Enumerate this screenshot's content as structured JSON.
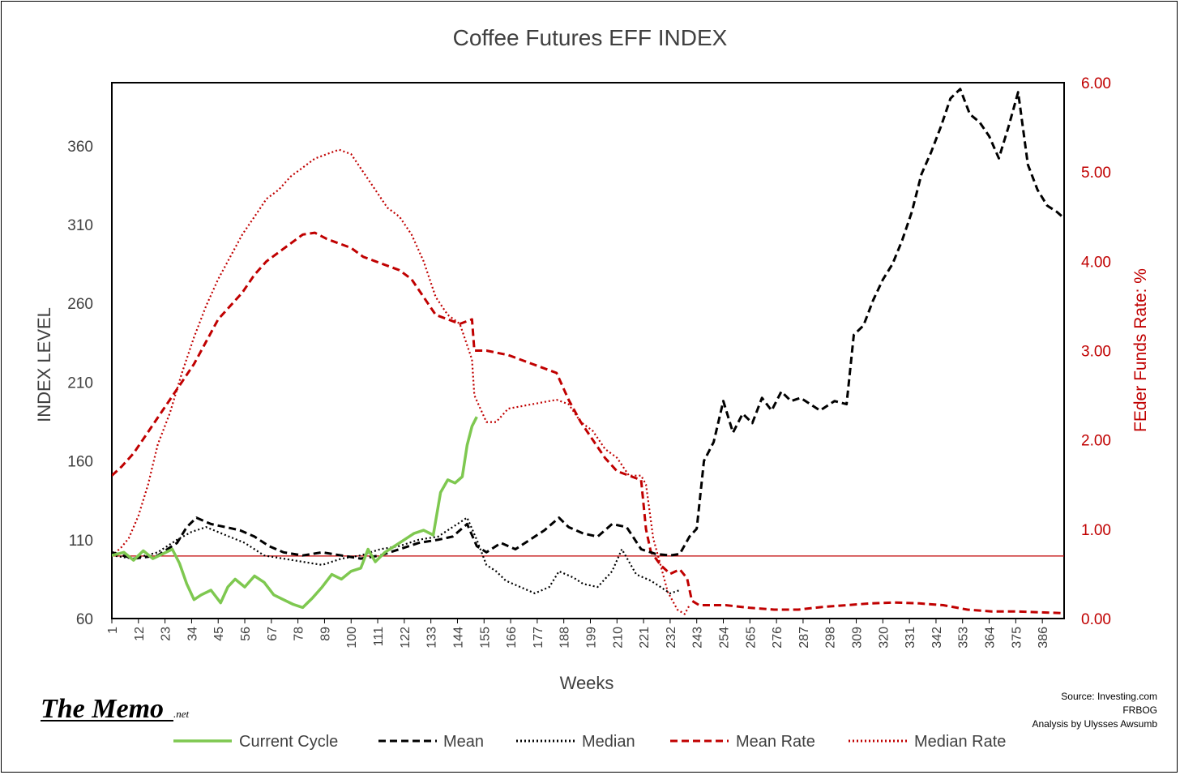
{
  "chart_data": {
    "type": "line",
    "title": "Coffee Futures EFF INDEX",
    "xlabel": "Weeks",
    "ylabel": "INDEX LEVEL",
    "y2label": "FEder Funds Rate: %",
    "xlim": [
      1,
      395
    ],
    "ylim": [
      60,
      400
    ],
    "y2lim": [
      0,
      6
    ],
    "x_ticks": [
      1,
      12,
      23,
      34,
      45,
      56,
      67,
      78,
      89,
      100,
      111,
      122,
      133,
      144,
      155,
      166,
      177,
      188,
      199,
      210,
      221,
      232,
      243,
      254,
      265,
      276,
      287,
      298,
      309,
      320,
      331,
      342,
      353,
      364,
      375,
      386
    ],
    "y_ticks": [
      "60",
      "110",
      "160",
      "210",
      "260",
      "310",
      "360"
    ],
    "y2_ticks": [
      "0.00",
      "1.00",
      "2.00",
      "3.00",
      "4.00",
      "5.00",
      "6.00"
    ],
    "reference_line": {
      "axis": "y2",
      "value": 0.7,
      "color": "#c00000"
    },
    "grid": false,
    "legend_position": "bottom",
    "series": [
      {
        "name": "Current Cycle",
        "axis": "left",
        "color": "#7ec850",
        "style": "solid",
        "x": [
          1,
          6,
          10,
          14,
          18,
          22,
          26,
          29,
          32,
          35,
          38,
          42,
          46,
          49,
          52,
          56,
          60,
          64,
          68,
          72,
          76,
          80,
          84,
          88,
          92,
          96,
          100,
          104,
          107,
          110,
          114,
          118,
          122,
          126,
          130,
          134,
          137,
          140,
          143,
          146,
          148,
          150,
          152
        ],
        "y": [
          100,
          102,
          97,
          103,
          98,
          101,
          104,
          95,
          82,
          72,
          75,
          78,
          70,
          80,
          85,
          80,
          87,
          83,
          75,
          72,
          69,
          67,
          73,
          80,
          88,
          85,
          90,
          92,
          104,
          96,
          102,
          106,
          110,
          114,
          116,
          113,
          140,
          148,
          146,
          150,
          170,
          182,
          188
        ]
      },
      {
        "name": "Mean",
        "axis": "left",
        "color": "#000000",
        "style": "dashed",
        "x": [
          1,
          10,
          20,
          28,
          32,
          36,
          42,
          48,
          54,
          60,
          66,
          72,
          80,
          88,
          96,
          104,
          112,
          120,
          128,
          136,
          142,
          148,
          152,
          156,
          162,
          168,
          174,
          180,
          186,
          190,
          196,
          202,
          208,
          214,
          220,
          226,
          232,
          236,
          240,
          243,
          246,
          250,
          254,
          258,
          262,
          266,
          270,
          274,
          278,
          282,
          286,
          290,
          294,
          300,
          305,
          308,
          312,
          316,
          320,
          324,
          328,
          332,
          336,
          340,
          344,
          348,
          352,
          356,
          360,
          364,
          368,
          372,
          376,
          380,
          384,
          388,
          392,
          395
        ],
        "y": [
          102,
          98,
          100,
          108,
          118,
          124,
          120,
          118,
          116,
          112,
          106,
          102,
          100,
          102,
          100,
          98,
          100,
          104,
          108,
          110,
          112,
          120,
          106,
          102,
          108,
          104,
          110,
          116,
          124,
          118,
          114,
          112,
          120,
          118,
          104,
          101,
          100,
          101,
          112,
          117,
          160,
          172,
          198,
          178,
          190,
          184,
          200,
          192,
          204,
          198,
          200,
          196,
          192,
          198,
          196,
          240,
          246,
          262,
          275,
          285,
          300,
          318,
          342,
          356,
          372,
          390,
          396,
          380,
          375,
          366,
          352,
          372,
          394,
          348,
          332,
          322,
          318,
          314
        ]
      },
      {
        "name": "Median",
        "axis": "left",
        "color": "#000000",
        "style": "dotted",
        "x": [
          1,
          10,
          20,
          28,
          34,
          40,
          48,
          56,
          64,
          72,
          80,
          88,
          96,
          104,
          112,
          120,
          128,
          136,
          142,
          148,
          152,
          156,
          160,
          164,
          170,
          176,
          182,
          186,
          192,
          196,
          202,
          208,
          212,
          218,
          224,
          228,
          232,
          236
        ],
        "y": [
          100,
          98,
          102,
          110,
          115,
          118,
          113,
          108,
          100,
          98,
          96,
          94,
          98,
          100,
          104,
          106,
          110,
          112,
          118,
          124,
          110,
          94,
          90,
          84,
          80,
          76,
          80,
          90,
          86,
          82,
          80,
          90,
          104,
          88,
          84,
          80,
          76,
          78
        ]
      },
      {
        "name": "Mean Rate",
        "axis": "right",
        "color": "#c00000",
        "style": "dashed",
        "x": [
          1,
          5,
          10,
          15,
          20,
          25,
          30,
          35,
          40,
          45,
          50,
          55,
          60,
          65,
          70,
          75,
          80,
          85,
          90,
          95,
          100,
          105,
          110,
          115,
          120,
          125,
          130,
          135,
          140,
          145,
          150,
          151,
          156,
          165,
          175,
          185,
          190,
          195,
          200,
          205,
          210,
          215,
          220,
          222,
          224,
          228,
          232,
          236,
          239,
          241,
          244,
          255,
          265,
          275,
          285,
          295,
          305,
          315,
          325,
          335,
          345,
          355,
          365,
          375,
          385,
          395
        ],
        "y": [
          1.6,
          1.7,
          1.85,
          2.05,
          2.25,
          2.45,
          2.65,
          2.85,
          3.1,
          3.35,
          3.5,
          3.65,
          3.85,
          4.0,
          4.1,
          4.2,
          4.3,
          4.32,
          4.25,
          4.2,
          4.15,
          4.05,
          4.0,
          3.95,
          3.9,
          3.8,
          3.6,
          3.4,
          3.35,
          3.3,
          3.35,
          3.0,
          3.0,
          2.95,
          2.85,
          2.75,
          2.45,
          2.2,
          2.0,
          1.8,
          1.65,
          1.6,
          1.55,
          1.0,
          0.75,
          0.6,
          0.5,
          0.55,
          0.45,
          0.2,
          0.15,
          0.15,
          0.12,
          0.1,
          0.1,
          0.13,
          0.15,
          0.17,
          0.18,
          0.17,
          0.15,
          0.1,
          0.08,
          0.08,
          0.07,
          0.06
        ]
      },
      {
        "name": "Median Rate",
        "axis": "right",
        "color": "#c00000",
        "style": "dotted",
        "x": [
          1,
          5,
          8,
          12,
          16,
          20,
          25,
          30,
          35,
          40,
          45,
          50,
          55,
          60,
          65,
          70,
          75,
          80,
          85,
          90,
          95,
          100,
          105,
          110,
          115,
          120,
          125,
          130,
          135,
          140,
          145,
          150,
          151,
          156,
          160,
          165,
          175,
          185,
          190,
          195,
          200,
          205,
          210,
          215,
          220,
          222,
          225,
          228,
          231,
          235,
          238,
          240
        ],
        "y": [
          0.7,
          0.8,
          0.9,
          1.15,
          1.5,
          1.95,
          2.3,
          2.75,
          3.15,
          3.5,
          3.8,
          4.05,
          4.3,
          4.5,
          4.7,
          4.8,
          4.95,
          5.05,
          5.15,
          5.2,
          5.25,
          5.2,
          5.0,
          4.8,
          4.6,
          4.5,
          4.3,
          4.0,
          3.6,
          3.4,
          3.3,
          2.9,
          2.5,
          2.2,
          2.2,
          2.35,
          2.4,
          2.45,
          2.4,
          2.2,
          2.1,
          1.9,
          1.8,
          1.6,
          1.6,
          1.5,
          0.9,
          0.6,
          0.3,
          0.1,
          0.05,
          0.15
        ]
      }
    ]
  },
  "legend": [
    {
      "label": "Current Cycle",
      "color": "#7ec850",
      "style": "solid"
    },
    {
      "label": "Mean",
      "color": "#000000",
      "style": "dashed"
    },
    {
      "label": "Median",
      "color": "#000000",
      "style": "dotted"
    },
    {
      "label": "Mean Rate",
      "color": "#c00000",
      "style": "dashed"
    },
    {
      "label": "Median Rate",
      "color": "#c00000",
      "style": "dotted"
    }
  ],
  "logo": {
    "text": "The Memo",
    "suffix": ".net"
  },
  "source": {
    "line1": "Source: Investing.com",
    "line2": "FRBOG",
    "line3": "Analysis by Ulysses Awsumb"
  }
}
